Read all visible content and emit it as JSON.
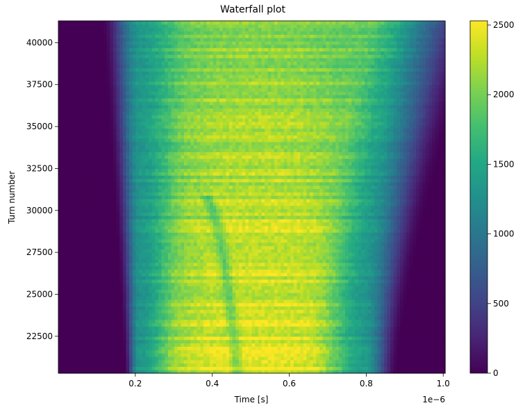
{
  "chart_data": {
    "type": "heatmap",
    "title": "Waterfall plot",
    "xlabel": "Time [s]",
    "ylabel": "Turn number",
    "x_offset_label": "1e−6",
    "xlim": [
      0.0,
      1.005
    ],
    "ylim": [
      20300,
      41300
    ],
    "x_ticks": [
      0.2,
      0.4,
      0.6,
      0.8,
      1.0
    ],
    "x_tick_labels": [
      "0.2",
      "0.4",
      "0.6",
      "0.8",
      "1.0"
    ],
    "y_ticks": [
      22500,
      25000,
      27500,
      30000,
      32500,
      35000,
      37500,
      40000
    ],
    "y_tick_labels": [
      "22500",
      "25000",
      "27500",
      "30000",
      "32500",
      "35000",
      "37500",
      "40000"
    ],
    "colorbar": {
      "colormap": "viridis",
      "vmin": 0,
      "vmax": 2530,
      "ticks": [
        0,
        500,
        1000,
        1500,
        2000,
        2500
      ],
      "tick_labels": [
        "0",
        "500",
        "1000",
        "1500",
        "2000",
        "2500"
      ]
    },
    "bunch_profile": {
      "left_edge_start": 0.19,
      "left_edge_end": 0.16,
      "right_edge_start": 0.84,
      "right_edge_end": 0.99,
      "peak_value": 2450,
      "plateau_value": 1950,
      "shoulder_value": 1300
    },
    "grid": false,
    "legend": "none"
  }
}
